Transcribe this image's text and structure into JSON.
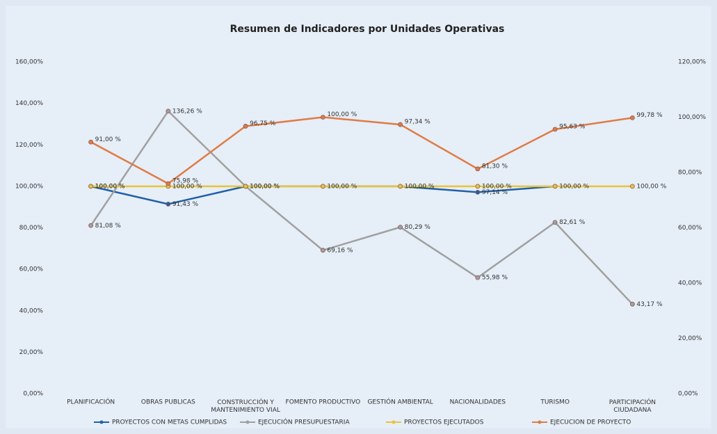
{
  "chart_data": {
    "type": "line",
    "title": "Resumen de Indicadores por Unidades Operativas",
    "categories": [
      "PLANIFICACIÓN",
      "OBRAS PUBLICAS",
      "CONSTRUCCIÓN Y MANTENIMIENTO VIAL",
      "FOMENTO PRODUCTIVO",
      "GESTIÓN AMBIENTAL",
      "NACIONALIDADES",
      "TURISMO",
      "PARTICIPACIÓN CIUDADANA"
    ],
    "ylim": [
      0,
      160
    ],
    "yticks": [
      {
        "value": 0,
        "label": "0,00%"
      },
      {
        "value": 20,
        "label": "20,00%"
      },
      {
        "value": 40,
        "label": "40,00%"
      },
      {
        "value": 60,
        "label": "60,00%"
      },
      {
        "value": 80,
        "label": "80,00%"
      },
      {
        "value": 100,
        "label": "100,00%"
      },
      {
        "value": 120,
        "label": "120,00%"
      },
      {
        "value": 140,
        "label": "140,00%"
      },
      {
        "value": 160,
        "label": "160,00%"
      }
    ],
    "y2lim": [
      0,
      120
    ],
    "y2ticks": [
      {
        "value": 0,
        "label": "0,00%"
      },
      {
        "value": 20,
        "label": "20,00%"
      },
      {
        "value": 40,
        "label": "40,00%"
      },
      {
        "value": 60,
        "label": "60,00%"
      },
      {
        "value": 80,
        "label": "80,00%"
      },
      {
        "value": 100,
        "label": "100,00%"
      },
      {
        "value": 120,
        "label": "120,00%"
      }
    ],
    "legend": "bottom",
    "series": [
      {
        "name": "PROYECTOS CON METAS CUMPLIDAS",
        "color": "#1f5fa8",
        "axis": "y",
        "values": [
          100,
          91.43,
          100,
          100,
          100,
          97.14,
          100,
          null
        ],
        "value_labels": [
          "100,00 %",
          "91,43 %",
          "100,00 %",
          null,
          null,
          "97,14 %",
          null,
          null
        ]
      },
      {
        "name": "EJECUCIÓN PRESUPUESTARIA",
        "color": "#a0a0a0",
        "axis": "y",
        "values": [
          81.08,
          136.26,
          100,
          69.16,
          80.29,
          55.98,
          82.61,
          43.17
        ],
        "value_labels": [
          "81,08 %",
          "136,26 %",
          null,
          "69,16 %",
          "80,29 %",
          "55,98 %",
          "82,61 %",
          "43,17 %"
        ]
      },
      {
        "name": "PROYECTOS EJECUTADOS",
        "color": "#e8c43a",
        "axis": "y",
        "values": [
          100,
          100,
          100,
          100,
          100,
          100,
          100,
          100
        ],
        "value_labels": [
          "100,00 %",
          "100,00 %",
          "100,00 %",
          "100,00 %",
          "100,00 %",
          "100,00 %",
          "100,00 %",
          "100,00 %"
        ]
      },
      {
        "name": "EJECUCION DE PROYECTO",
        "color": "#e07b45",
        "axis": "y2",
        "values": [
          91.0,
          75.98,
          96.75,
          100.0,
          97.34,
          81.3,
          95.63,
          99.78
        ],
        "value_labels": [
          "91,00 %",
          "75,98 %",
          "96,75 %",
          "100,00 %",
          "97,34 %",
          "81,30 %",
          "95,63 %",
          "99,78 %"
        ]
      }
    ]
  }
}
